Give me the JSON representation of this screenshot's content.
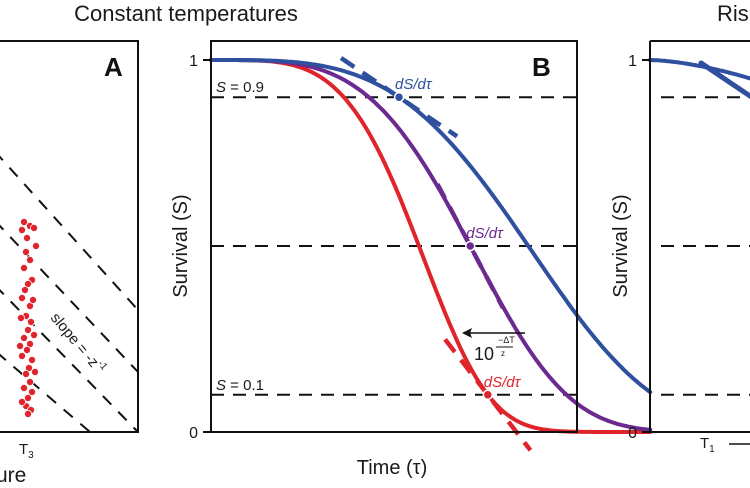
{
  "figure": {
    "title_left": "Constant temperatures",
    "title_right": "Ris"
  },
  "chart_data": [
    {
      "panel": "A",
      "type": "scatter",
      "title": "",
      "panel_label": "A",
      "xlabel": "ure",
      "ylabel": "",
      "x_tick_labels": [
        {
          "base": "T",
          "sub": "3"
        }
      ],
      "annotation": {
        "text": "slope = -z",
        "superscript": "-1"
      },
      "color": "#e0242c",
      "points_at": "T3",
      "dashed_lines": 4
    },
    {
      "panel": "B",
      "type": "line",
      "title": "Constant temperatures",
      "panel_label": "B",
      "xlabel": "Time (τ)",
      "ylabel": "Survival (S)",
      "ylim": [
        0,
        1
      ],
      "y_ticks": [
        "0",
        "1"
      ],
      "reference_lines": [
        {
          "S": 0.9,
          "label_var": "S",
          "label_rest": " = 0.9"
        },
        {
          "S": 0.5,
          "label_var": "",
          "label_rest": ""
        },
        {
          "S": 0.1,
          "label_var": "S",
          "label_rest": " = 0.1"
        }
      ],
      "series": [
        {
          "name": "red",
          "color": "#e0242c",
          "scale": 0.62,
          "shape": 4.2,
          "tangent_at_S": 0.1,
          "tangent_label": "dS/dτ"
        },
        {
          "name": "purple",
          "color": "#6b2a8f",
          "scale": 0.78,
          "shape": 3.8,
          "tangent_at_S": 0.5,
          "tangent_label": "dS/dτ"
        },
        {
          "name": "blue",
          "color": "#2f4f9f",
          "scale": 0.96,
          "shape": 3.6,
          "tangent_at_S": 0.9,
          "tangent_label": "dS/dτ"
        }
      ],
      "shift_annotation": {
        "base": "10",
        "numerator": "−ΔT",
        "denominator": "z"
      }
    },
    {
      "panel": "C",
      "type": "line",
      "title": "Ris",
      "ylabel": "Survival (S)",
      "ylim": [
        0,
        1
      ],
      "y_ticks": [
        "0",
        "1"
      ],
      "x_tick_labels": [
        {
          "base": "T",
          "sub": "1"
        }
      ],
      "reference_lines": [
        {
          "S": 0.9
        },
        {
          "S": 0.5
        },
        {
          "S": 0.1
        }
      ],
      "series": [
        {
          "name": "blue",
          "color": "#2f4f9f"
        }
      ]
    }
  ]
}
